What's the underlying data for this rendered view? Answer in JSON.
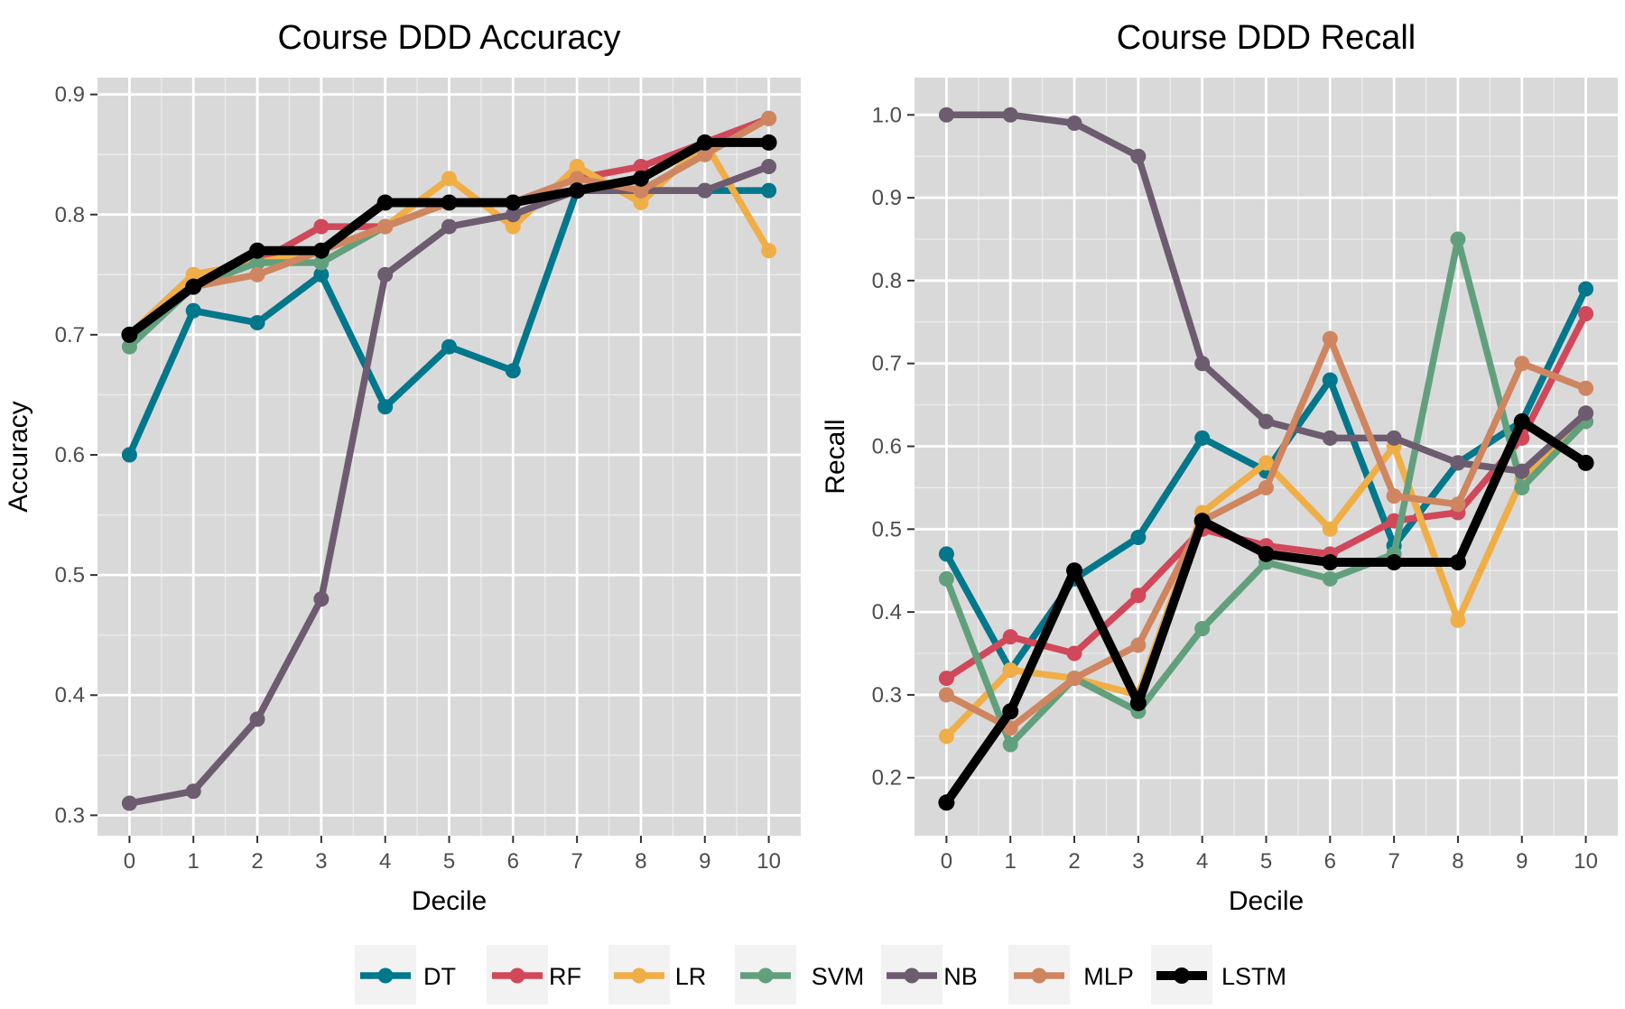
{
  "chart_data": [
    {
      "type": "line",
      "title": "Course DDD Accuracy",
      "xlabel": "Decile",
      "ylabel": "Accuracy",
      "x": [
        0,
        1,
        2,
        3,
        4,
        5,
        6,
        7,
        8,
        9,
        10
      ],
      "xlim": [
        -0.5,
        10.5
      ],
      "ylim": [
        0.283,
        0.914
      ],
      "yticks": [
        0.3,
        0.4,
        0.5,
        0.6,
        0.7,
        0.8,
        0.9
      ],
      "ytick_labels": [
        "0.3",
        "0.4",
        "0.5",
        "0.6",
        "0.7",
        "0.8",
        "0.9"
      ],
      "grid": true,
      "series": [
        {
          "name": "DT",
          "values": [
            0.6,
            0.72,
            0.71,
            0.75,
            0.64,
            0.69,
            0.67,
            0.82,
            0.82,
            0.82,
            0.82
          ]
        },
        {
          "name": "RF",
          "values": [
            0.7,
            0.75,
            0.76,
            0.79,
            0.79,
            0.81,
            0.81,
            0.83,
            0.84,
            0.86,
            0.88
          ]
        },
        {
          "name": "LR",
          "values": [
            0.7,
            0.75,
            0.76,
            0.77,
            0.79,
            0.83,
            0.79,
            0.84,
            0.81,
            0.86,
            0.77
          ]
        },
        {
          "name": "SVM",
          "values": [
            0.69,
            0.74,
            0.76,
            0.76,
            0.79,
            0.81,
            0.81,
            0.82,
            0.82,
            0.85,
            0.88
          ]
        },
        {
          "name": "NB",
          "values": [
            0.31,
            0.32,
            0.38,
            0.48,
            0.75,
            0.79,
            0.8,
            0.82,
            0.82,
            0.82,
            0.84
          ]
        },
        {
          "name": "MLP",
          "values": [
            0.7,
            0.74,
            0.75,
            0.77,
            0.79,
            0.81,
            0.81,
            0.83,
            0.82,
            0.85,
            0.88
          ]
        },
        {
          "name": "LSTM",
          "values": [
            0.7,
            0.74,
            0.77,
            0.77,
            0.81,
            0.81,
            0.81,
            0.82,
            0.83,
            0.86,
            0.86
          ]
        }
      ]
    },
    {
      "type": "line",
      "title": "Course DDD Recall",
      "xlabel": "Decile",
      "ylabel": "Recall",
      "x": [
        0,
        1,
        2,
        3,
        4,
        5,
        6,
        7,
        8,
        9,
        10
      ],
      "xlim": [
        -0.5,
        10.5
      ],
      "ylim": [
        0.13,
        1.045
      ],
      "yticks": [
        0.2,
        0.3,
        0.4,
        0.5,
        0.6,
        0.7,
        0.8,
        0.9,
        1.0
      ],
      "ytick_labels": [
        "0.2",
        "0.3",
        "0.4",
        "0.5",
        "0.6",
        "0.7",
        "0.8",
        "0.9",
        "1.0"
      ],
      "grid": true,
      "series": [
        {
          "name": "DT",
          "values": [
            0.47,
            0.33,
            0.44,
            0.49,
            0.61,
            0.57,
            0.68,
            0.48,
            0.58,
            0.63,
            0.79
          ]
        },
        {
          "name": "RF",
          "values": [
            0.32,
            0.37,
            0.35,
            0.42,
            0.5,
            0.48,
            0.47,
            0.51,
            0.52,
            0.61,
            0.76
          ]
        },
        {
          "name": "LR",
          "values": [
            0.25,
            0.33,
            0.32,
            0.3,
            0.52,
            0.58,
            0.5,
            0.6,
            0.39,
            0.56,
            0.64
          ]
        },
        {
          "name": "SVM",
          "values": [
            0.44,
            0.24,
            0.32,
            0.28,
            0.38,
            0.46,
            0.44,
            0.47,
            0.85,
            0.55,
            0.63
          ]
        },
        {
          "name": "NB",
          "values": [
            1.0,
            1.0,
            0.99,
            0.95,
            0.7,
            0.63,
            0.61,
            0.61,
            0.58,
            0.57,
            0.64
          ]
        },
        {
          "name": "MLP",
          "values": [
            0.3,
            0.26,
            0.32,
            0.36,
            0.51,
            0.55,
            0.73,
            0.54,
            0.53,
            0.7,
            0.67
          ]
        },
        {
          "name": "LSTM",
          "values": [
            0.17,
            0.28,
            0.45,
            0.29,
            0.51,
            0.47,
            0.46,
            0.46,
            0.46,
            0.63,
            0.58
          ]
        }
      ]
    }
  ],
  "legend": {
    "placement": "bottom",
    "items": [
      {
        "name": "DT",
        "color": "#00778b"
      },
      {
        "name": "RF",
        "color": "#d1485a"
      },
      {
        "name": "LR",
        "color": "#f0ae47"
      },
      {
        "name": "SVM",
        "color": "#62a07d"
      },
      {
        "name": "NB",
        "color": "#6d5c6f"
      },
      {
        "name": "MLP",
        "color": "#cf8660"
      },
      {
        "name": "LSTM",
        "color": "#000000"
      }
    ]
  }
}
